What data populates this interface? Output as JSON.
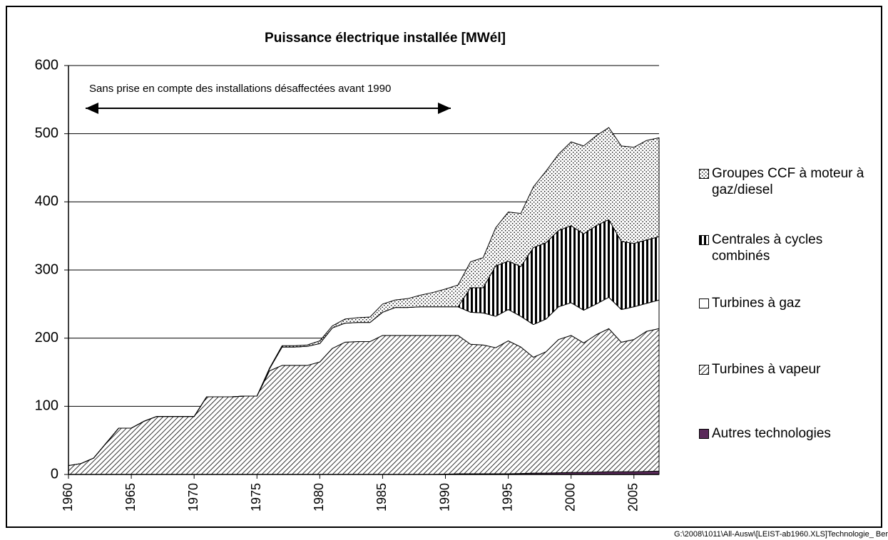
{
  "chart_data": {
    "type": "stacked_area",
    "title": "Puissance électrique installée  [MWél]",
    "annotation": "Sans prise en compte des installations désaffectées avant 1990",
    "footer": "G:\\2008\\1011\\All-Ausw\\[LEIST-ab1960.XLS]Technologie_ Ber",
    "x": [
      1960,
      1961,
      1962,
      1963,
      1964,
      1965,
      1966,
      1967,
      1968,
      1969,
      1970,
      1971,
      1972,
      1973,
      1974,
      1975,
      1976,
      1977,
      1978,
      1979,
      1980,
      1981,
      1982,
      1983,
      1984,
      1985,
      1986,
      1987,
      1988,
      1989,
      1990,
      1991,
      1992,
      1993,
      1994,
      1995,
      1996,
      1997,
      1998,
      1999,
      2000,
      2001,
      2002,
      2003,
      2004,
      2005,
      2006,
      2007
    ],
    "xlim": [
      1960,
      2007
    ],
    "xticks": [
      1960,
      1965,
      1970,
      1975,
      1980,
      1985,
      1990,
      1995,
      2000,
      2005
    ],
    "ylim": [
      0,
      600
    ],
    "yticks": [
      0,
      100,
      200,
      300,
      400,
      500,
      600
    ],
    "grid": true,
    "legend": "right",
    "series": [
      {
        "name": "Autres technologies",
        "color": "#5a2a5a",
        "pattern": "solid",
        "values": [
          0,
          0,
          0,
          0,
          0,
          0,
          0,
          0,
          0,
          0,
          0,
          0,
          0,
          0,
          0,
          0,
          0,
          0,
          0,
          0,
          0,
          0,
          0,
          0,
          0,
          0,
          0,
          0,
          0,
          0,
          0.5,
          1,
          1,
          1,
          1,
          1,
          1.5,
          2,
          2,
          2.5,
          3,
          3,
          3.5,
          4,
          4,
          4,
          4.5,
          5
        ]
      },
      {
        "name": "Turbines à vapeur",
        "color": "#000000",
        "pattern": "diagonal",
        "values": [
          13,
          16,
          24,
          46,
          68,
          68,
          78,
          85,
          85,
          85,
          85,
          114,
          114,
          114,
          115,
          115,
          152,
          160,
          160,
          160,
          165,
          185,
          194,
          195,
          195,
          204,
          204,
          204,
          204,
          204,
          203.5,
          203,
          190,
          189,
          185,
          195,
          185.5,
          170,
          178,
          195.5,
          201,
          190,
          201.5,
          210,
          190,
          194,
          205.5,
          209
        ]
      },
      {
        "name": "Turbines à gaz",
        "color": "#ffffff",
        "pattern": "solid",
        "values": [
          0,
          0,
          0,
          0,
          0,
          0,
          0,
          0,
          0,
          0,
          0,
          0,
          0,
          0,
          0,
          0,
          3,
          27,
          27,
          28,
          27,
          30,
          28,
          28,
          28,
          34,
          41,
          41,
          42,
          42,
          42,
          42,
          47,
          47,
          46,
          46,
          45,
          48,
          48,
          48,
          48,
          48,
          45,
          46,
          48,
          48,
          41,
          42
        ]
      },
      {
        "name": "Centrales à cycles combinés",
        "color": "#000000",
        "pattern": "vertical",
        "values": [
          0,
          0,
          0,
          0,
          0,
          0,
          0,
          0,
          0,
          0,
          0,
          0,
          0,
          0,
          0,
          0,
          0,
          0,
          0,
          0,
          0,
          0,
          0,
          0,
          0,
          0,
          0,
          0,
          0,
          0,
          0,
          0,
          36,
          37,
          74,
          71,
          73,
          113,
          112,
          112,
          113,
          112,
          115,
          114,
          100,
          93,
          93,
          93
        ]
      },
      {
        "name": "Groupes CCF à moteur à gaz/diesel",
        "color": "#000000",
        "pattern": "dots",
        "values": [
          0,
          0,
          0,
          0,
          0,
          0,
          0,
          0,
          0,
          0,
          0,
          0,
          0,
          0,
          0,
          0,
          1,
          2,
          2,
          2,
          4,
          3,
          6,
          7,
          8,
          12,
          11,
          13,
          17,
          21,
          26,
          32,
          38,
          44,
          56,
          72,
          78,
          89,
          105,
          112,
          123,
          129,
          132,
          135,
          140,
          141,
          146,
          145
        ]
      }
    ]
  }
}
